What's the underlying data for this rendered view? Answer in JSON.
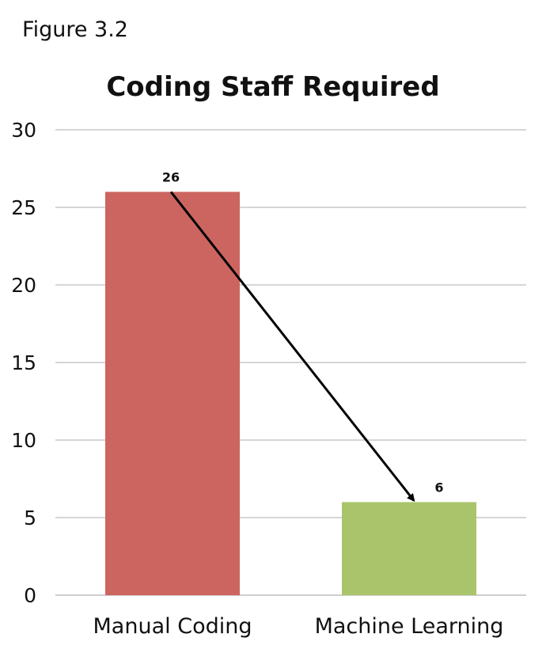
{
  "figure_label": "Figure 3.2",
  "colors": {
    "grid": "#bdbdbd",
    "arrow": "#000000"
  },
  "chart_data": {
    "type": "bar",
    "title": "Coding Staff Required",
    "xlabel": "",
    "ylabel": "",
    "categories": [
      "Manual Coding",
      "Machine Learning"
    ],
    "values": [
      26,
      6
    ],
    "data_labels": [
      "26",
      "6"
    ],
    "bar_colors": [
      "#cc6560",
      "#a9c46b"
    ],
    "ylim": [
      0,
      30
    ],
    "yticks": [
      0,
      5,
      10,
      15,
      20,
      25,
      30
    ],
    "grid": true,
    "legend": "none",
    "annotations": [
      {
        "type": "arrow",
        "from_category": 0,
        "from_value": 26,
        "to_category": 1,
        "to_value": 6
      }
    ]
  }
}
